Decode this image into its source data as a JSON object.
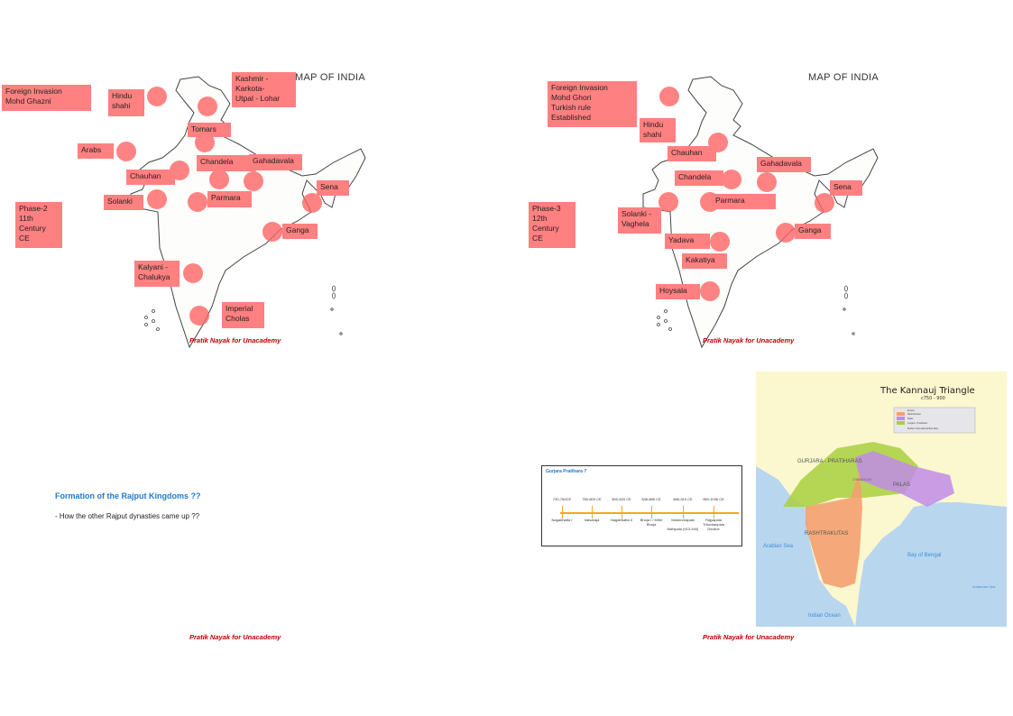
{
  "footer": "Pratik Nayak for Unacademy",
  "slide1": {
    "map_title": "MAP OF INDIA",
    "labels": [
      "Foreign Invasion\nMohd Ghazni",
      "Hindu\nshahi",
      "Kashmir -\nKarkota-\nUtpal - Lohar",
      "Tomars",
      "Arabs",
      "Chauhan",
      "Chandela",
      "Gahadavala",
      "Solanki",
      "Parmara",
      "Sena",
      "Ganga",
      "Phase-2\n11th\nCentury\nCE",
      "Kalyani -\nChalukya",
      "Imperial\nCholas"
    ]
  },
  "slide2": {
    "map_title": "MAP OF INDIA",
    "labels": [
      "Foreign Invasion\nMohd Ghori\nTurkish rule\nEstablished",
      "Hindu\nshahi",
      "Chauhan",
      "Chandela",
      "Gahadavala",
      "Parmara",
      "Sena",
      "Solanki -\nVaghela",
      "Phase-3\n12th\nCentury\nCE",
      "Yadava",
      "Kakatiya",
      "Ganga",
      "Hoysala"
    ]
  },
  "slide3": {
    "title": "Formation of the Rajput Kingdoms ??",
    "bullet": "- How the other Rajput dynasties came up ??"
  },
  "slide4": {
    "timeline": {
      "title": "Gurjara Pratihara ?",
      "line_color": "#f5a623",
      "periods": [
        {
          "date": "730-760CE",
          "king": "Nagabhatta I"
        },
        {
          "date": "780-800 CE",
          "king": "Vatsaraja"
        },
        {
          "date": "800-833 CE",
          "king": "Nagabhatta II"
        },
        {
          "date": "836-885 CE",
          "king": "Bhoja I / Mihir\nBhoja"
        },
        {
          "date": "885-910 CE",
          "king": "Mahendrapala\n\nMahipala (913-944)"
        },
        {
          "date": "960-1036 CE",
          "king": "Rajyapala\nTrilochanpala\nDecline"
        }
      ]
    },
    "map": {
      "title": "The Kannauj Triangle",
      "subtitle": "c750 - 900",
      "legend": [
        "Empire",
        "Rashtrakutas",
        "Palas",
        "Gurjara - Pratiharas",
        "Modern International Boundary"
      ],
      "colors": {
        "rashtrakutas": "#f4a070",
        "palas": "#c08ce8",
        "pratiharas": "#a8d040",
        "land": "#fbf7cf",
        "sea": "#b9d6ef"
      },
      "regions": [
        "GURJARA -\nPRATIHARAS",
        "PALAS",
        "RASHTRAKUTAS",
        "CHANDELAS",
        "Arabian\nSea",
        "Bay\nof\nBengal",
        "Indian Ocean",
        "Andaman\nSea"
      ]
    }
  }
}
